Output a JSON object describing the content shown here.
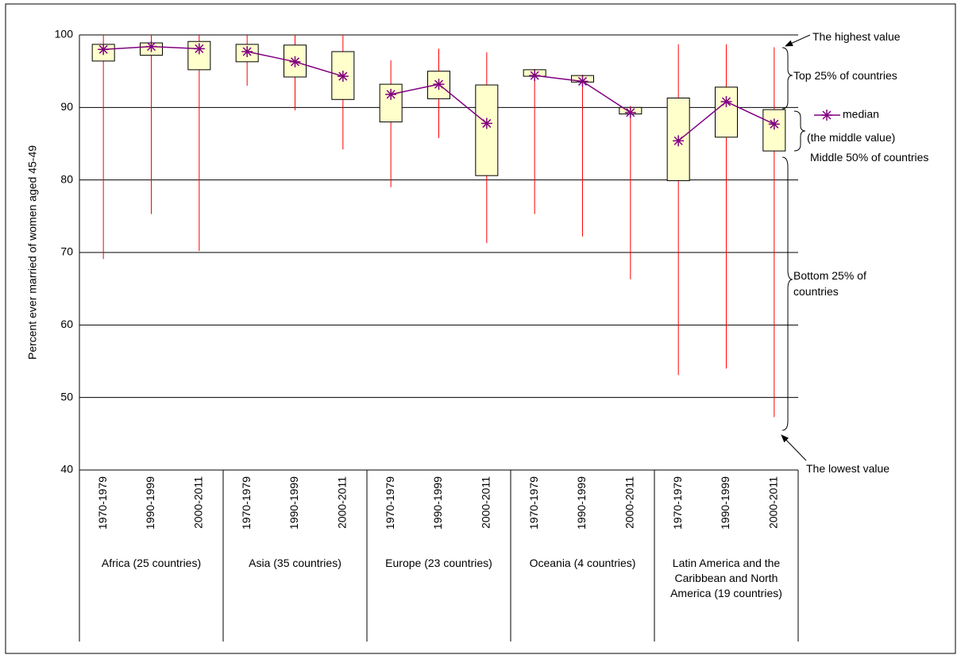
{
  "chart_data": {
    "type": "box",
    "y_label": "Percent ever married of women aged 45-49",
    "groups": [
      "Africa (25 countries)",
      "Asia (35 countries)",
      "Europe (23 countries)",
      "Oceania (4 countries)",
      "Latin America and the Caribbean and North America (19 countries)"
    ],
    "categories": [
      "1970-1979",
      "1990-1999",
      "2000-2011",
      "1970-1979",
      "1990-1999",
      "2000-2011",
      "1970-1979",
      "1990-1999",
      "2000-2011",
      "1970-1979",
      "1990-1999",
      "2000-2011",
      "1970-1979",
      "1990-1999",
      "2000-2011"
    ],
    "max": [
      100,
      100,
      100,
      100,
      100,
      100,
      96.5,
      98.1,
      97.6,
      95.3,
      94.5,
      90.2,
      98.7,
      98.7,
      98.3
    ],
    "q3": [
      98.7,
      98.9,
      99.1,
      98.7,
      98.6,
      97.7,
      93.2,
      95.0,
      93.1,
      95.2,
      94.4,
      90.0,
      91.3,
      92.8,
      89.7
    ],
    "q1": [
      96.4,
      97.2,
      95.2,
      96.3,
      94.2,
      91.1,
      88.0,
      91.2,
      80.6,
      94.3,
      93.5,
      89.1,
      79.9,
      85.9,
      84.0
    ],
    "min": [
      69.1,
      75.3,
      70.2,
      93.0,
      89.6,
      84.2,
      79.0,
      85.8,
      71.3,
      75.3,
      72.2,
      66.3,
      53.1,
      54.0,
      47.3
    ],
    "series": [
      {
        "name": "median",
        "color": "#800080",
        "values": [
          98.0,
          98.4,
          98.1,
          97.7,
          96.3,
          94.3,
          91.8,
          93.2,
          87.8,
          94.4,
          93.6,
          89.3,
          85.4,
          90.8,
          87.7
        ]
      }
    ],
    "box_color": "#ffffcc",
    "whisker_color": "#ff0000",
    "ylim": [
      40,
      100
    ],
    "yticks": [
      40,
      50,
      60,
      70,
      80,
      90,
      100
    ],
    "grid": true,
    "annotations": [
      "The highest value",
      "Top 25% of countries",
      "(the middle value)",
      "Middle 50% of countries",
      "Bottom 25% of countries",
      "The lowest value"
    ]
  }
}
